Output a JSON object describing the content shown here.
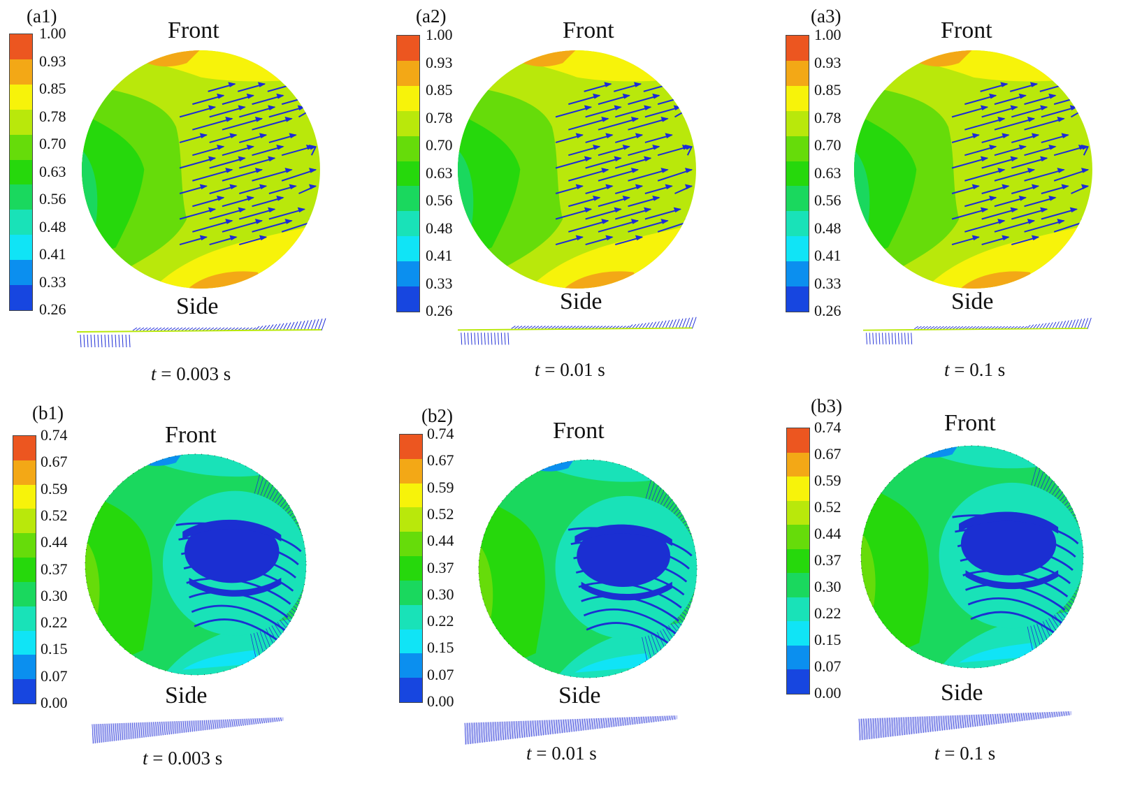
{
  "palette": [
    "#1746e0",
    "#0b8fef",
    "#10e4f6",
    "#19e2b8",
    "#1ad85e",
    "#26d80c",
    "#66dc0a",
    "#b9e80b",
    "#f7f30a",
    "#f3a816",
    "#ec5620"
  ],
  "panels": [
    {
      "label": "(a1)",
      "front": "Front",
      "side": "Side",
      "time_var": "t",
      "time_val": " = 0.003 s",
      "ticks": [
        "1.00",
        "0.93",
        "0.85",
        "0.78",
        "0.70",
        "0.63",
        "0.56",
        "0.48",
        "0.41",
        "0.33",
        "0.26"
      ]
    },
    {
      "label": "(a2)",
      "front": "Front",
      "side": "Side",
      "time_var": "t",
      "time_val": " = 0.01 s",
      "ticks": [
        "1.00",
        "0.93",
        "0.85",
        "0.78",
        "0.70",
        "0.63",
        "0.56",
        "0.48",
        "0.41",
        "0.33",
        "0.26"
      ]
    },
    {
      "label": "(a3)",
      "front": "Front",
      "side": "Side",
      "time_var": "t",
      "time_val": " = 0.1 s",
      "ticks": [
        "1.00",
        "0.93",
        "0.85",
        "0.78",
        "0.70",
        "0.63",
        "0.56",
        "0.48",
        "0.41",
        "0.33",
        "0.26"
      ]
    },
    {
      "label": "(b1)",
      "front": "Front",
      "side": "Side",
      "time_var": "t",
      "time_val": " = 0.003 s",
      "ticks": [
        "0.74",
        "0.67",
        "0.59",
        "0.52",
        "0.44",
        "0.37",
        "0.30",
        "0.22",
        "0.15",
        "0.07",
        "0.00"
      ]
    },
    {
      "label": "(b2)",
      "front": "Front",
      "side": "Side",
      "time_var": "t",
      "time_val": " = 0.01 s",
      "ticks": [
        "0.74",
        "0.67",
        "0.59",
        "0.52",
        "0.44",
        "0.37",
        "0.30",
        "0.22",
        "0.15",
        "0.07",
        "0.00"
      ]
    },
    {
      "label": "(b3)",
      "front": "Front",
      "side": "Side",
      "time_var": "t",
      "time_val": " = 0.1 s",
      "ticks": [
        "0.74",
        "0.67",
        "0.59",
        "0.52",
        "0.44",
        "0.37",
        "0.30",
        "0.22",
        "0.15",
        "0.07",
        "0.00"
      ]
    }
  ]
}
